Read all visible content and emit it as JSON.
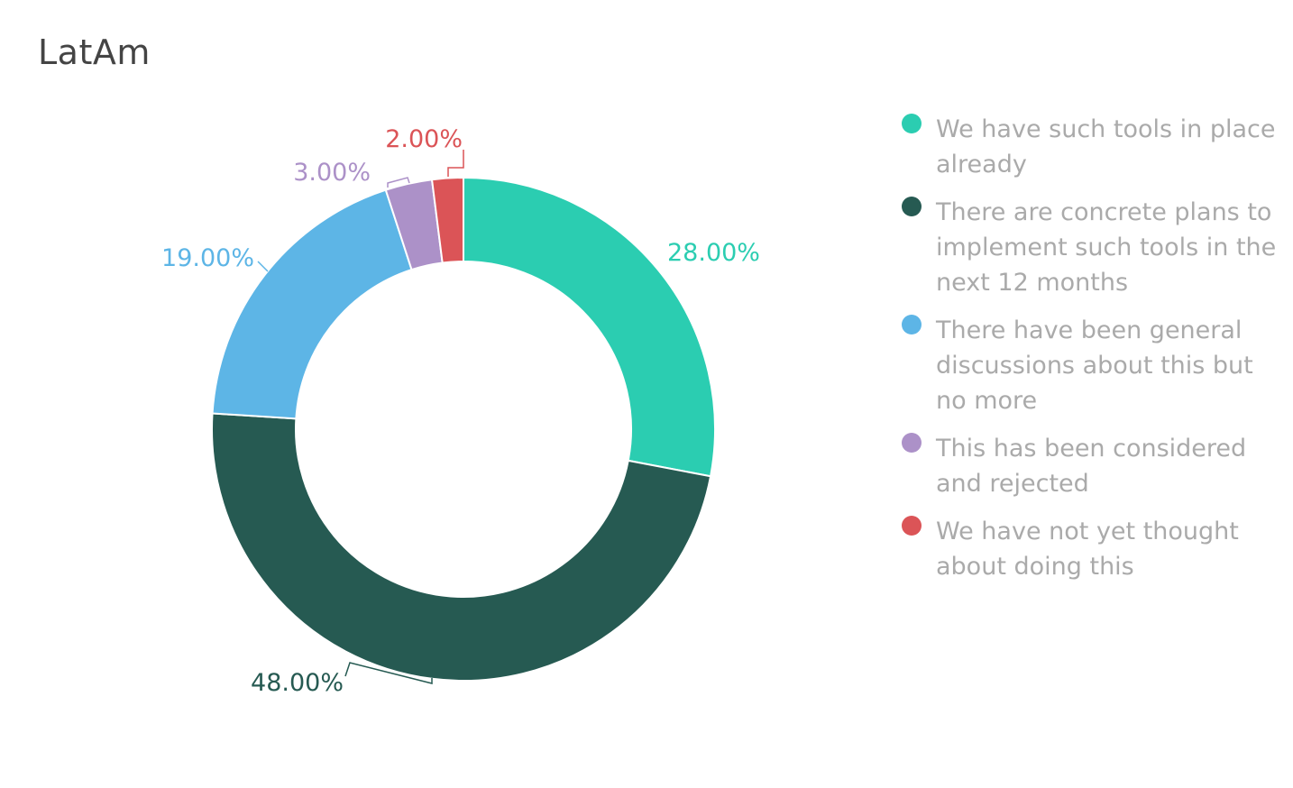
{
  "chart_data": {
    "type": "pie",
    "title": "LatAm",
    "style": "donut",
    "legend_position": "right",
    "slices": [
      {
        "label": "We have such tools in place already",
        "value": 28,
        "display": "28.00%",
        "color": "#2BCDB1"
      },
      {
        "label": "There are concrete plans to implement such tools in the next 12 months",
        "value": 48,
        "display": "48.00%",
        "color": "#265A52"
      },
      {
        "label": "There have been general discussions about this but no more",
        "value": 19,
        "display": "19.00%",
        "color": "#5DB5E6"
      },
      {
        "label": "This has been considered and rejected",
        "value": 3,
        "display": "3.00%",
        "color": "#AC91C8"
      },
      {
        "label": "We have not yet thought about doing this",
        "value": 2,
        "display": "2.00%",
        "color": "#DB5457"
      }
    ]
  }
}
